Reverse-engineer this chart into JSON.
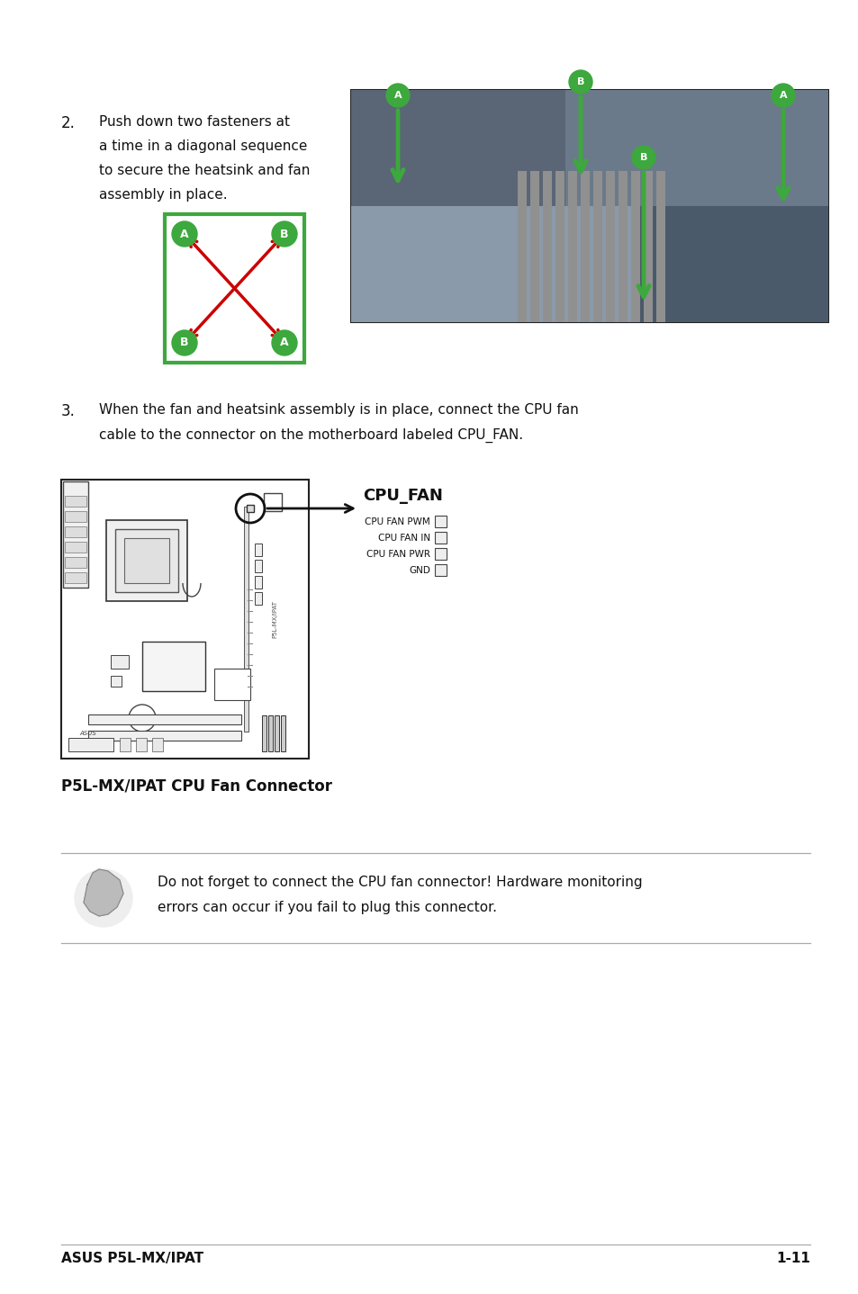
{
  "bg_color": "#ffffff",
  "page_width": 9.54,
  "page_height": 14.38,
  "footer_text_left": "ASUS P5L-MX/IPAT",
  "footer_text_right": "1-11",
  "step2_number": "2.",
  "step2_text": [
    "Push down two fasteners at",
    "a time in a diagonal sequence",
    "to secure the heatsink and fan",
    "assembly in place."
  ],
  "step3_number": "3.",
  "step3_text": [
    "When the fan and heatsink assembly is in place, connect the CPU fan",
    "cable to the connector on the motherboard labeled CPU_FAN."
  ],
  "cpu_fan_label": "CPU_FAN",
  "cpu_fan_pins": [
    "CPU FAN PWM",
    "CPU FAN IN",
    "CPU FAN PWR",
    "GND"
  ],
  "diagram_caption": "P5L-MX/IPAT CPU Fan Connector",
  "note_text": [
    "Do not forget to connect the CPU fan connector! Hardware monitoring",
    "errors can occur if you fail to plug this connector."
  ],
  "green": "#3da83d",
  "red": "#cc0000",
  "black": "#111111",
  "gray": "#aaaaaa",
  "darkgray": "#555555",
  "lightgray": "#dddddd",
  "mb_text": "P5L-MX/IPAT",
  "asus_text": "ASUS"
}
